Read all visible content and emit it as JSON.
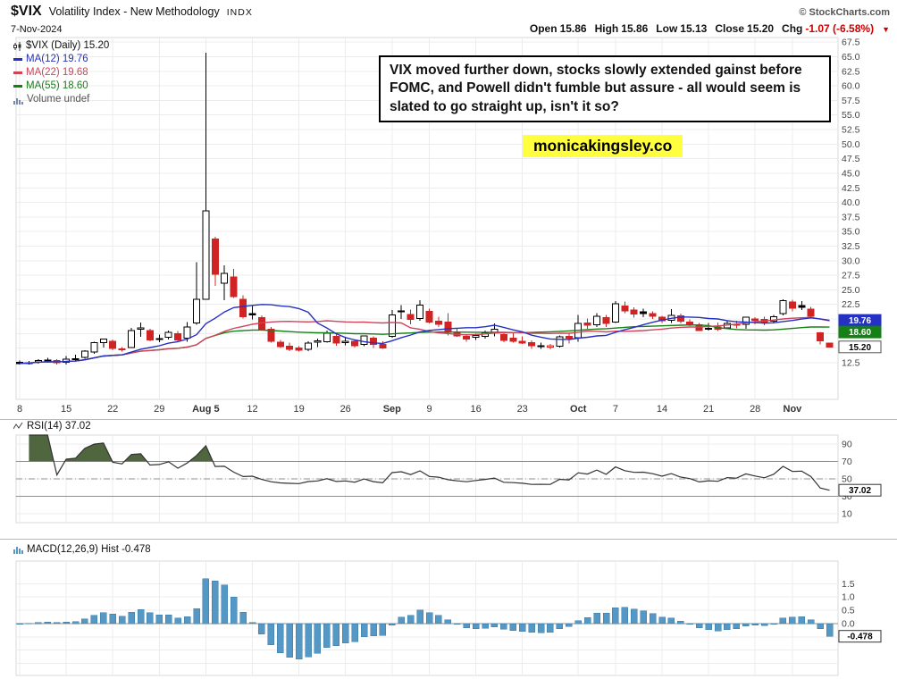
{
  "header": {
    "symbol": "$VIX",
    "title": "Volatility Index - New Methodology",
    "exchange": "INDX",
    "source": "© StockCharts.com",
    "date": "7-Nov-2024",
    "open_label": "Open",
    "open": "15.86",
    "high_label": "High",
    "high": "15.86",
    "low_label": "Low",
    "low": "15.13",
    "close_label": "Close",
    "close": "15.20",
    "chg_label": "Chg",
    "chg": "-1.07 (-6.58%)",
    "chg_direction": "down"
  },
  "legend": {
    "main": "$VIX (Daily) 15.20",
    "ma12": "MA(12) 19.76",
    "ma22": "MA(22) 19.68",
    "ma55": "MA(55) 18.60",
    "volume": "Volume undef"
  },
  "annotation": {
    "text": "VIX moved further down, stocks slowly extended gainst before FOMC, and Powell didn't fumble but assure - all would seem is slated to go straight up, isn't it so?",
    "brand": "monicakingsley.co"
  },
  "colors": {
    "ma12": "#2531c4",
    "ma22": "#d1435b",
    "ma55": "#158015",
    "down": "#d02424",
    "hist": "#5598c6",
    "histEdge": "#3a7aa6",
    "rsiFill": "#50663f",
    "accentYellow": "#ffff3d",
    "chgNeg": "#cc0000"
  },
  "chart_data": {
    "type": "candlestick",
    "title": "$VIX (Daily)",
    "timeframe": "Daily",
    "ylim_main": [
      6.2,
      68.3
    ],
    "y_ticks_main": [
      67.5,
      65.0,
      62.5,
      60.0,
      57.5,
      55.0,
      52.5,
      50.0,
      47.5,
      45.0,
      42.5,
      40.0,
      37.5,
      35.0,
      32.5,
      30.0,
      27.5,
      25.0,
      22.5,
      20.0,
      17.5,
      15.0,
      12.5
    ],
    "x_ticks": [
      {
        "i": 0,
        "label": "8"
      },
      {
        "i": 5,
        "label": "15"
      },
      {
        "i": 10,
        "label": "22"
      },
      {
        "i": 15,
        "label": "29"
      },
      {
        "i": 20,
        "label": "Aug 5",
        "bold": true
      },
      {
        "i": 25,
        "label": "12"
      },
      {
        "i": 30,
        "label": "19"
      },
      {
        "i": 35,
        "label": "26"
      },
      {
        "i": 40,
        "label": "Sep",
        "bold": true
      },
      {
        "i": 44,
        "label": "9"
      },
      {
        "i": 49,
        "label": "16"
      },
      {
        "i": 54,
        "label": "23"
      },
      {
        "i": 60,
        "label": "Oct",
        "bold": true
      },
      {
        "i": 64,
        "label": "7"
      },
      {
        "i": 69,
        "label": "14"
      },
      {
        "i": 74,
        "label": "21"
      },
      {
        "i": 79,
        "label": "28"
      },
      {
        "i": 83,
        "label": "Nov",
        "bold": true
      }
    ],
    "dates": [
      "Jul 8",
      "Jul 9",
      "Jul 10",
      "Jul 11",
      "Jul 12",
      "Jul 15",
      "Jul 16",
      "Jul 17",
      "Jul 18",
      "Jul 19",
      "Jul 22",
      "Jul 23",
      "Jul 24",
      "Jul 25",
      "Jul 26",
      "Jul 29",
      "Jul 30",
      "Jul 31",
      "Aug 1",
      "Aug 2",
      "Aug 5",
      "Aug 6",
      "Aug 7",
      "Aug 8",
      "Aug 9",
      "Aug 12",
      "Aug 13",
      "Aug 14",
      "Aug 15",
      "Aug 16",
      "Aug 19",
      "Aug 20",
      "Aug 21",
      "Aug 22",
      "Aug 23",
      "Aug 26",
      "Aug 27",
      "Aug 28",
      "Aug 29",
      "Aug 30",
      "Sep 3",
      "Sep 4",
      "Sep 5",
      "Sep 6",
      "Sep 9",
      "Sep 10",
      "Sep 11",
      "Sep 12",
      "Sep 13",
      "Sep 16",
      "Sep 17",
      "Sep 18",
      "Sep 19",
      "Sep 20",
      "Sep 23",
      "Sep 24",
      "Sep 25",
      "Sep 26",
      "Sep 27",
      "Sep 30",
      "Oct 1",
      "Oct 2",
      "Oct 3",
      "Oct 4",
      "Oct 7",
      "Oct 8",
      "Oct 9",
      "Oct 10",
      "Oct 11",
      "Oct 14",
      "Oct 15",
      "Oct 16",
      "Oct 17",
      "Oct 18",
      "Oct 21",
      "Oct 22",
      "Oct 23",
      "Oct 24",
      "Oct 25",
      "Oct 28",
      "Oct 29",
      "Oct 30",
      "Oct 31",
      "Nov 1",
      "Nov 4",
      "Nov 5",
      "Nov 6",
      "Nov 7"
    ],
    "ohlc": [
      [
        12.6,
        12.9,
        12.2,
        12.37
      ],
      [
        12.45,
        12.8,
        12.2,
        12.51
      ],
      [
        12.6,
        13.1,
        12.35,
        12.85
      ],
      [
        12.9,
        13.3,
        12.5,
        12.92
      ],
      [
        12.9,
        13.1,
        12.2,
        12.46
      ],
      [
        12.6,
        13.6,
        12.2,
        13.12
      ],
      [
        13.1,
        13.9,
        12.8,
        13.19
      ],
      [
        13.4,
        14.6,
        13.2,
        14.48
      ],
      [
        14.3,
        16.1,
        14.0,
        15.93
      ],
      [
        15.9,
        16.6,
        15.1,
        16.52
      ],
      [
        16.2,
        16.5,
        14.6,
        14.91
      ],
      [
        14.9,
        15.2,
        14.4,
        14.72
      ],
      [
        15.1,
        18.5,
        15.0,
        18.04
      ],
      [
        18.2,
        19.4,
        16.9,
        18.46
      ],
      [
        18.0,
        18.3,
        16.2,
        16.39
      ],
      [
        16.6,
        17.3,
        16.0,
        16.6
      ],
      [
        16.9,
        18.0,
        16.5,
        17.69
      ],
      [
        17.5,
        17.9,
        16.0,
        16.36
      ],
      [
        16.7,
        19.5,
        16.1,
        18.59
      ],
      [
        19.3,
        29.7,
        19.0,
        23.39
      ],
      [
        23.4,
        65.73,
        23.3,
        38.57
      ],
      [
        33.7,
        34.1,
        25.7,
        27.71
      ],
      [
        26.1,
        29.2,
        23.2,
        27.85
      ],
      [
        27.2,
        28.6,
        23.6,
        23.79
      ],
      [
        23.4,
        24.1,
        20.1,
        20.37
      ],
      [
        20.9,
        22.4,
        19.9,
        20.71
      ],
      [
        20.2,
        20.6,
        18.0,
        18.12
      ],
      [
        18.2,
        18.6,
        15.9,
        16.19
      ],
      [
        16.0,
        16.4,
        15.0,
        15.23
      ],
      [
        15.3,
        15.9,
        14.5,
        14.8
      ],
      [
        15.0,
        15.3,
        14.4,
        14.65
      ],
      [
        14.8,
        16.2,
        14.5,
        15.88
      ],
      [
        16.0,
        16.6,
        15.2,
        16.27
      ],
      [
        16.1,
        18.0,
        15.9,
        17.56
      ],
      [
        17.0,
        17.3,
        15.4,
        15.86
      ],
      [
        15.9,
        16.7,
        15.5,
        16.15
      ],
      [
        16.2,
        16.5,
        15.1,
        15.43
      ],
      [
        15.6,
        17.2,
        15.3,
        17.11
      ],
      [
        16.7,
        17.0,
        15.0,
        15.65
      ],
      [
        15.6,
        16.2,
        14.9,
        15.0
      ],
      [
        17.0,
        21.5,
        16.8,
        20.72
      ],
      [
        21.4,
        22.4,
        20.0,
        21.31
      ],
      [
        20.8,
        21.6,
        19.1,
        19.9
      ],
      [
        20.1,
        23.2,
        19.7,
        22.38
      ],
      [
        21.3,
        21.8,
        19.2,
        19.45
      ],
      [
        19.6,
        20.4,
        18.6,
        19.08
      ],
      [
        19.5,
        21.0,
        17.2,
        17.69
      ],
      [
        17.8,
        18.3,
        16.9,
        17.07
      ],
      [
        17.0,
        17.4,
        16.1,
        16.56
      ],
      [
        16.9,
        17.5,
        16.4,
        17.14
      ],
      [
        17.0,
        18.0,
        16.6,
        17.61
      ],
      [
        17.6,
        19.2,
        17.0,
        18.23
      ],
      [
        17.3,
        17.8,
        16.0,
        16.33
      ],
      [
        16.7,
        17.6,
        15.9,
        16.15
      ],
      [
        16.2,
        17.0,
        15.7,
        15.89
      ],
      [
        15.9,
        16.3,
        14.9,
        15.39
      ],
      [
        15.3,
        15.9,
        14.9,
        15.41
      ],
      [
        15.2,
        15.7,
        14.8,
        15.37
      ],
      [
        15.3,
        17.2,
        15.1,
        16.96
      ],
      [
        17.0,
        17.6,
        15.8,
        16.73
      ],
      [
        16.8,
        20.7,
        16.1,
        19.26
      ],
      [
        19.3,
        20.1,
        18.3,
        18.9
      ],
      [
        19.0,
        21.0,
        18.6,
        20.49
      ],
      [
        20.2,
        20.7,
        18.6,
        19.21
      ],
      [
        19.5,
        23.1,
        19.3,
        22.64
      ],
      [
        22.2,
        23.0,
        21.0,
        21.42
      ],
      [
        21.5,
        22.0,
        20.2,
        20.86
      ],
      [
        21.2,
        21.8,
        20.3,
        20.93
      ],
      [
        20.9,
        21.3,
        20.0,
        20.46
      ],
      [
        20.3,
        20.5,
        19.3,
        19.7
      ],
      [
        19.8,
        21.7,
        19.3,
        20.64
      ],
      [
        20.5,
        20.9,
        19.2,
        19.58
      ],
      [
        19.5,
        19.9,
        18.8,
        19.11
      ],
      [
        19.0,
        19.3,
        17.9,
        18.03
      ],
      [
        18.2,
        19.3,
        18.0,
        18.37
      ],
      [
        18.6,
        19.4,
        17.9,
        18.2
      ],
      [
        18.5,
        19.6,
        18.2,
        19.24
      ],
      [
        19.0,
        19.7,
        18.4,
        19.08
      ],
      [
        19.1,
        20.4,
        18.3,
        20.33
      ],
      [
        20.0,
        20.3,
        19.1,
        19.8
      ],
      [
        19.9,
        20.4,
        18.9,
        19.34
      ],
      [
        19.6,
        20.7,
        19.2,
        20.35
      ],
      [
        20.9,
        23.4,
        20.6,
        23.16
      ],
      [
        22.9,
        23.3,
        21.3,
        21.88
      ],
      [
        22.3,
        23.1,
        21.5,
        21.98
      ],
      [
        21.7,
        22.1,
        20.2,
        20.49
      ],
      [
        17.6,
        17.8,
        15.6,
        16.27
      ],
      [
        15.86,
        15.86,
        15.13,
        15.2
      ]
    ],
    "overlays": [
      {
        "name": "MA(12)",
        "last": 19.76
      },
      {
        "name": "MA(22)",
        "last": 19.68
      },
      {
        "name": "MA(55)",
        "last": 18.6
      }
    ],
    "price_labels": [
      {
        "value": 19.76,
        "text": "19.76"
      },
      {
        "value": 18.6,
        "text": "18.60"
      },
      {
        "value": 15.2,
        "text": "15.20"
      }
    ],
    "rsi": {
      "label": "RSI(14) 37.02",
      "period": 14,
      "value": 37.02,
      "value_text": "37.02",
      "levels": {
        "upper": 70,
        "mid": 50,
        "lower": 30
      },
      "y_ticks": [
        90,
        70,
        50,
        30,
        10
      ]
    },
    "macd": {
      "label": "MACD(12,26,9) Hist -0.478",
      "params": "12,26,9",
      "hist_last": -0.478,
      "hist_text": "-0.478",
      "y_ticks": [
        1.5,
        1.0,
        0.5,
        0.0
      ],
      "grid": [
        1.5,
        1.0,
        0.5,
        0,
        -0.5,
        -1.0,
        -1.5
      ]
    }
  }
}
